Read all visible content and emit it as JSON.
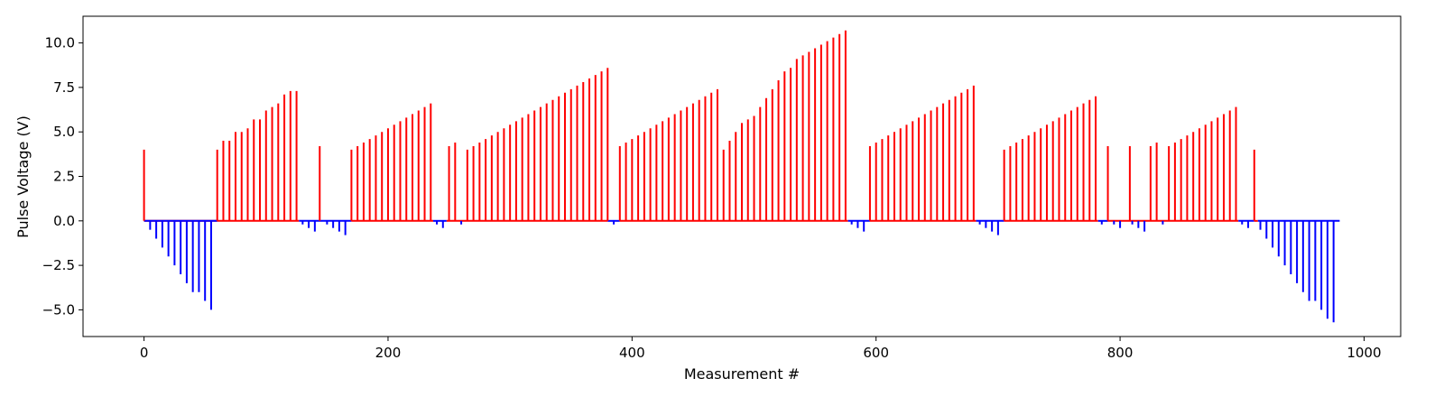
{
  "chart_data": {
    "type": "bar",
    "title": "",
    "xlabel": "Measurement #",
    "ylabel": "Pulse Voltage (V)",
    "xlim": [
      -50,
      1030
    ],
    "ylim": [
      -6.5,
      11.5
    ],
    "xticks": [
      0,
      200,
      400,
      600,
      800,
      1000
    ],
    "xtick_labels": [
      "0",
      "200",
      "400",
      "600",
      "800",
      "1000"
    ],
    "yticks": [
      -5.0,
      -2.5,
      0.0,
      2.5,
      5.0,
      7.5,
      10.0
    ],
    "ytick_labels": [
      "−5.0",
      "−2.5",
      "0.0",
      "2.5",
      "5.0",
      "7.5",
      "10.0"
    ],
    "grid": false,
    "colors": {
      "positive": "#ff0000",
      "negative": "#0000ff"
    },
    "series": [
      {
        "color": "#ff0000",
        "points": [
          [
            0,
            4.0
          ],
          [
            60,
            4.0
          ],
          [
            65,
            4.5
          ],
          [
            70,
            4.5
          ],
          [
            75,
            5.0
          ],
          [
            80,
            5.0
          ],
          [
            85,
            5.2
          ],
          [
            90,
            5.7
          ],
          [
            95,
            5.7
          ],
          [
            100,
            6.2
          ],
          [
            105,
            6.4
          ],
          [
            110,
            6.6
          ],
          [
            115,
            7.1
          ],
          [
            120,
            7.3
          ],
          [
            125,
            7.3
          ],
          [
            144,
            4.2
          ],
          [
            170,
            4.0
          ],
          [
            175,
            4.2
          ],
          [
            180,
            4.4
          ],
          [
            185,
            4.6
          ],
          [
            190,
            4.8
          ],
          [
            195,
            5.0
          ],
          [
            200,
            5.2
          ],
          [
            205,
            5.4
          ],
          [
            210,
            5.6
          ],
          [
            215,
            5.8
          ],
          [
            220,
            6.0
          ],
          [
            225,
            6.2
          ],
          [
            230,
            6.4
          ],
          [
            235,
            6.6
          ],
          [
            250,
            4.2
          ],
          [
            255,
            4.4
          ],
          [
            265,
            4.0
          ],
          [
            270,
            4.2
          ],
          [
            275,
            4.4
          ],
          [
            280,
            4.6
          ],
          [
            285,
            4.8
          ],
          [
            290,
            5.0
          ],
          [
            295,
            5.2
          ],
          [
            300,
            5.4
          ],
          [
            305,
            5.6
          ],
          [
            310,
            5.8
          ],
          [
            315,
            6.0
          ],
          [
            320,
            6.2
          ],
          [
            325,
            6.4
          ],
          [
            330,
            6.6
          ],
          [
            335,
            6.8
          ],
          [
            340,
            7.0
          ],
          [
            345,
            7.2
          ],
          [
            350,
            7.4
          ],
          [
            355,
            7.6
          ],
          [
            360,
            7.8
          ],
          [
            365,
            8.0
          ],
          [
            370,
            8.2
          ],
          [
            375,
            8.4
          ],
          [
            380,
            8.6
          ],
          [
            390,
            4.2
          ],
          [
            395,
            4.4
          ],
          [
            400,
            4.6
          ],
          [
            405,
            4.8
          ],
          [
            410,
            5.0
          ],
          [
            415,
            5.2
          ],
          [
            420,
            5.4
          ],
          [
            425,
            5.6
          ],
          [
            430,
            5.8
          ],
          [
            435,
            6.0
          ],
          [
            440,
            6.2
          ],
          [
            445,
            6.4
          ],
          [
            450,
            6.6
          ],
          [
            455,
            6.8
          ],
          [
            460,
            7.0
          ],
          [
            465,
            7.2
          ],
          [
            470,
            7.4
          ],
          [
            475,
            4.0
          ],
          [
            480,
            4.5
          ],
          [
            485,
            5.0
          ],
          [
            490,
            5.5
          ],
          [
            495,
            5.7
          ],
          [
            500,
            5.9
          ],
          [
            505,
            6.4
          ],
          [
            510,
            6.9
          ],
          [
            515,
            7.4
          ],
          [
            520,
            7.9
          ],
          [
            525,
            8.4
          ],
          [
            530,
            8.6
          ],
          [
            535,
            9.1
          ],
          [
            540,
            9.3
          ],
          [
            545,
            9.5
          ],
          [
            550,
            9.7
          ],
          [
            555,
            9.9
          ],
          [
            560,
            10.1
          ],
          [
            565,
            10.3
          ],
          [
            570,
            10.5
          ],
          [
            575,
            10.7
          ],
          [
            595,
            4.2
          ],
          [
            600,
            4.4
          ],
          [
            605,
            4.6
          ],
          [
            610,
            4.8
          ],
          [
            615,
            5.0
          ],
          [
            620,
            5.2
          ],
          [
            625,
            5.4
          ],
          [
            630,
            5.6
          ],
          [
            635,
            5.8
          ],
          [
            640,
            6.0
          ],
          [
            645,
            6.2
          ],
          [
            650,
            6.4
          ],
          [
            655,
            6.6
          ],
          [
            660,
            6.8
          ],
          [
            665,
            7.0
          ],
          [
            670,
            7.2
          ],
          [
            675,
            7.4
          ],
          [
            680,
            7.6
          ],
          [
            705,
            4.0
          ],
          [
            710,
            4.2
          ],
          [
            715,
            4.4
          ],
          [
            720,
            4.6
          ],
          [
            725,
            4.8
          ],
          [
            730,
            5.0
          ],
          [
            735,
            5.2
          ],
          [
            740,
            5.4
          ],
          [
            745,
            5.6
          ],
          [
            750,
            5.8
          ],
          [
            755,
            6.0
          ],
          [
            760,
            6.2
          ],
          [
            765,
            6.4
          ],
          [
            770,
            6.6
          ],
          [
            775,
            6.8
          ],
          [
            780,
            7.0
          ],
          [
            790,
            4.2
          ],
          [
            808,
            4.2
          ],
          [
            825,
            4.2
          ],
          [
            830,
            4.4
          ],
          [
            840,
            4.2
          ],
          [
            845,
            4.4
          ],
          [
            850,
            4.6
          ],
          [
            855,
            4.8
          ],
          [
            860,
            5.0
          ],
          [
            865,
            5.2
          ],
          [
            870,
            5.4
          ],
          [
            875,
            5.6
          ],
          [
            880,
            5.8
          ],
          [
            885,
            6.0
          ],
          [
            890,
            6.2
          ],
          [
            895,
            6.4
          ],
          [
            910,
            4.0
          ]
        ]
      },
      {
        "color": "#0000ff",
        "points": [
          [
            5,
            -0.5
          ],
          [
            10,
            -1.0
          ],
          [
            15,
            -1.5
          ],
          [
            20,
            -2.0
          ],
          [
            25,
            -2.5
          ],
          [
            30,
            -3.0
          ],
          [
            35,
            -3.5
          ],
          [
            40,
            -4.0
          ],
          [
            45,
            -4.0
          ],
          [
            50,
            -4.5
          ],
          [
            55,
            -5.0
          ],
          [
            130,
            -0.2
          ],
          [
            135,
            -0.4
          ],
          [
            140,
            -0.6
          ],
          [
            150,
            -0.2
          ],
          [
            155,
            -0.4
          ],
          [
            160,
            -0.6
          ],
          [
            165,
            -0.8
          ],
          [
            240,
            -0.2
          ],
          [
            245,
            -0.4
          ],
          [
            260,
            -0.2
          ],
          [
            385,
            -0.2
          ],
          [
            580,
            -0.2
          ],
          [
            585,
            -0.4
          ],
          [
            590,
            -0.6
          ],
          [
            685,
            -0.2
          ],
          [
            690,
            -0.4
          ],
          [
            695,
            -0.6
          ],
          [
            700,
            -0.8
          ],
          [
            785,
            -0.2
          ],
          [
            795,
            -0.2
          ],
          [
            800,
            -0.4
          ],
          [
            810,
            -0.2
          ],
          [
            815,
            -0.4
          ],
          [
            820,
            -0.6
          ],
          [
            835,
            -0.2
          ],
          [
            900,
            -0.2
          ],
          [
            905,
            -0.4
          ],
          [
            915,
            -0.5
          ],
          [
            920,
            -1.0
          ],
          [
            925,
            -1.5
          ],
          [
            930,
            -2.0
          ],
          [
            935,
            -2.5
          ],
          [
            940,
            -3.0
          ],
          [
            945,
            -3.5
          ],
          [
            950,
            -4.0
          ],
          [
            955,
            -4.5
          ],
          [
            960,
            -4.5
          ],
          [
            965,
            -5.0
          ],
          [
            970,
            -5.5
          ],
          [
            975,
            -5.7
          ]
        ]
      }
    ],
    "baseline_segments": [
      {
        "from": 0,
        "to": 60,
        "color": "#ff0000"
      },
      {
        "from": 0,
        "to": 60,
        "color": "#0000ff"
      },
      {
        "from": 60,
        "to": 127,
        "color": "#ff0000"
      },
      {
        "from": 127,
        "to": 170,
        "color": "#0000ff"
      },
      {
        "from": 170,
        "to": 237,
        "color": "#ff0000"
      },
      {
        "from": 237,
        "to": 248,
        "color": "#0000ff"
      },
      {
        "from": 248,
        "to": 380,
        "color": "#ff0000"
      },
      {
        "from": 380,
        "to": 390,
        "color": "#0000ff"
      },
      {
        "from": 390,
        "to": 577,
        "color": "#ff0000"
      },
      {
        "from": 577,
        "to": 595,
        "color": "#0000ff"
      },
      {
        "from": 595,
        "to": 682,
        "color": "#ff0000"
      },
      {
        "from": 682,
        "to": 705,
        "color": "#0000ff"
      },
      {
        "from": 705,
        "to": 782,
        "color": "#ff0000"
      },
      {
        "from": 782,
        "to": 790,
        "color": "#0000ff"
      },
      {
        "from": 790,
        "to": 897,
        "color": "#ff0000"
      },
      {
        "from": 897,
        "to": 910,
        "color": "#0000ff"
      },
      {
        "from": 910,
        "to": 913,
        "color": "#ff0000"
      },
      {
        "from": 913,
        "to": 980,
        "color": "#0000ff"
      }
    ]
  }
}
